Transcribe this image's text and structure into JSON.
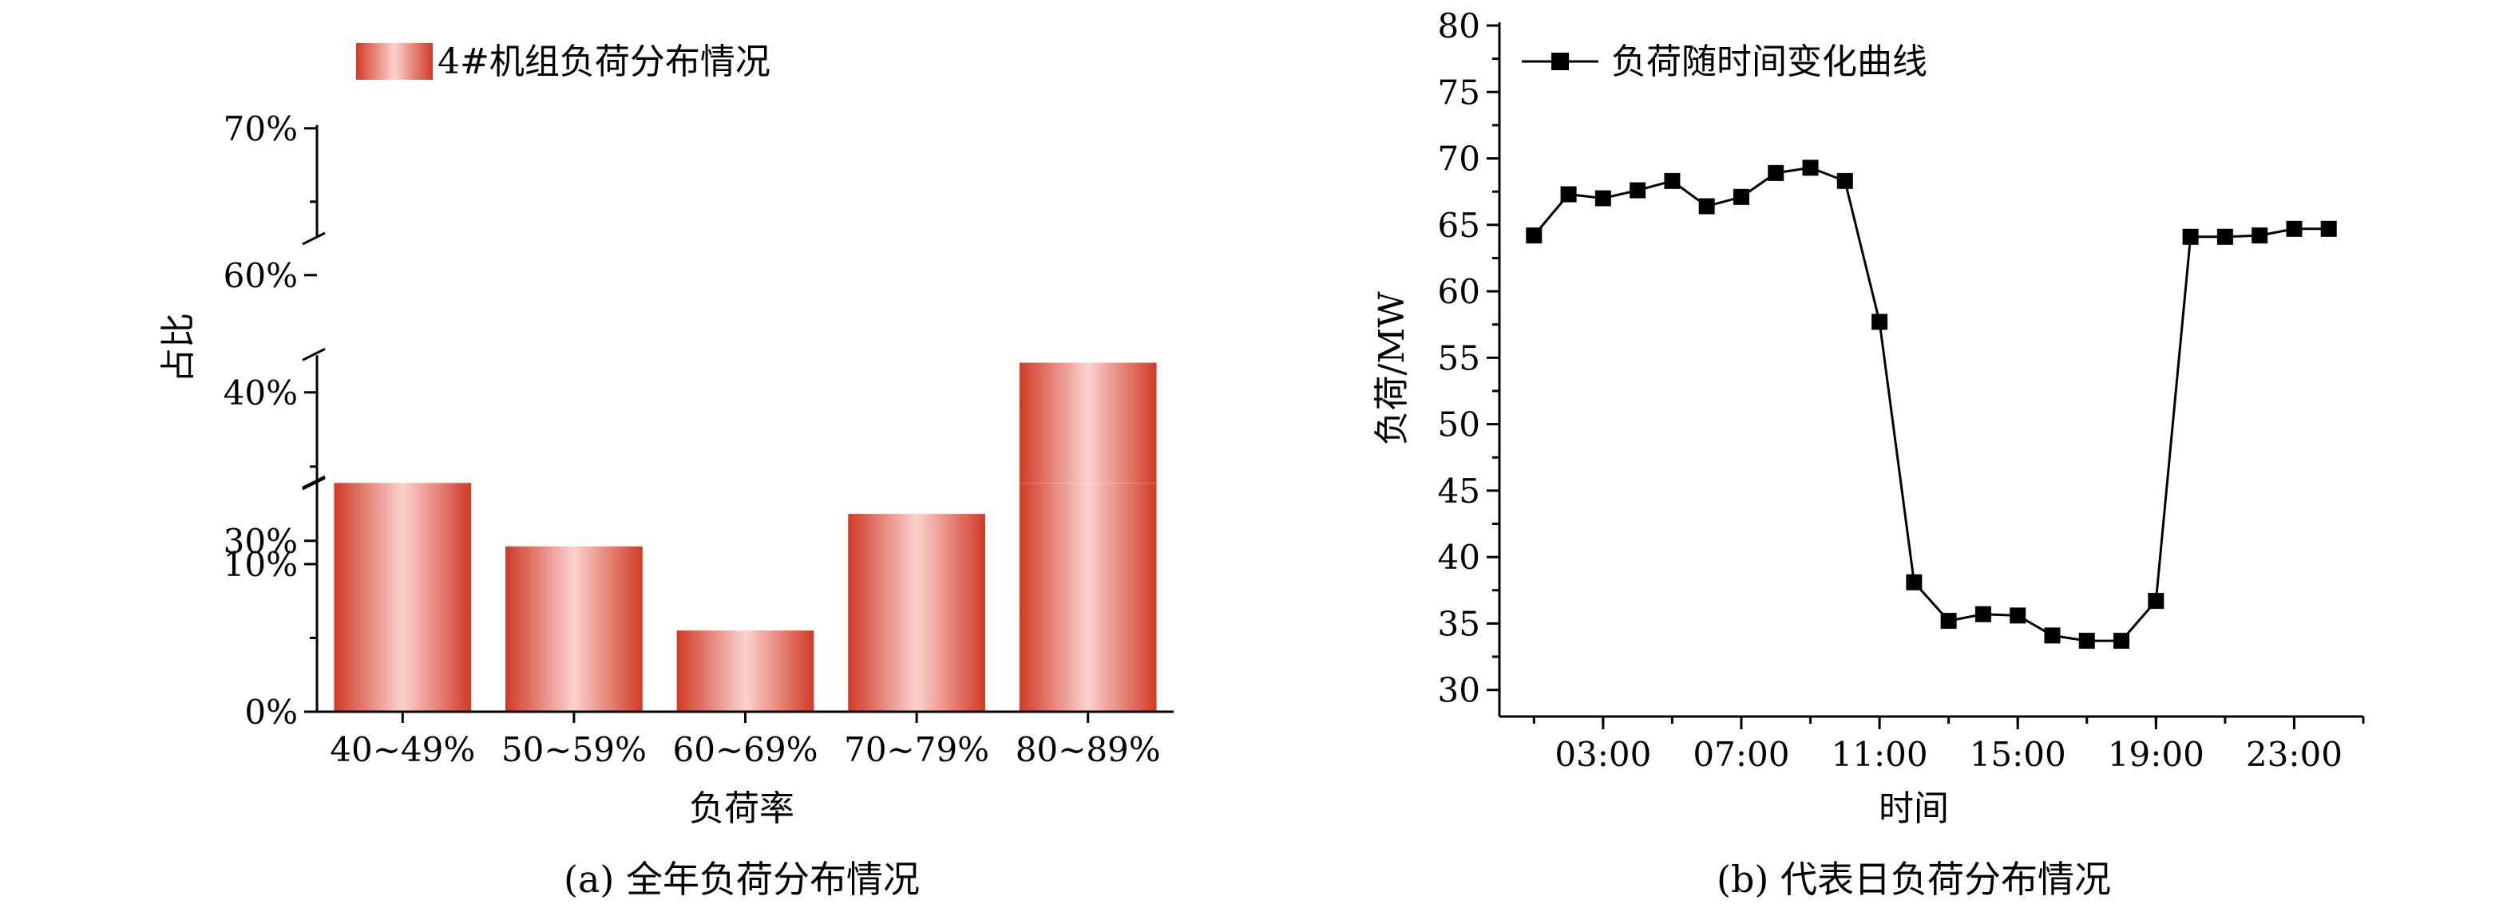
{
  "chart_data": [
    {
      "type": "bar",
      "title": "",
      "caption": "(a) 全年负荷分布情况",
      "xlabel": "负荷率",
      "ylabel": "占比",
      "categories": [
        "40~49%",
        "50~59%",
        "60~69%",
        "70~79%",
        "80~89%"
      ],
      "series": [
        {
          "name": "4#机组负荷分布情况",
          "values": [
            28.5,
            11.2,
            5.5,
            13.4,
            42.0
          ]
        }
      ],
      "y_breaks": [
        [
          15.5,
          28
        ],
        [
          42.5,
          57
        ]
      ],
      "yticks": [
        "0%",
        "10%",
        "30%",
        "40%",
        "60%",
        "70%"
      ],
      "ylim": [
        0,
        70
      ],
      "legend": "top-left",
      "grid": false
    },
    {
      "type": "line",
      "title": "",
      "caption": "(b) 代表日负荷分布情况",
      "xlabel": "时间",
      "ylabel": "负荷/MW",
      "x": [
        1,
        2,
        3,
        4,
        5,
        6,
        7,
        8,
        9,
        10,
        11,
        12,
        13,
        14,
        15,
        16,
        17,
        18,
        19,
        20,
        21,
        22,
        23,
        24
      ],
      "xticks": [
        "03:00",
        "07:00",
        "11:00",
        "15:00",
        "19:00",
        "23:00"
      ],
      "xtick_values": [
        3,
        7,
        11,
        15,
        19,
        23
      ],
      "xlim": [
        0,
        25
      ],
      "series": [
        {
          "name": "负荷随时间变化曲线",
          "values": [
            64.2,
            67.3,
            67.0,
            67.6,
            68.3,
            66.4,
            67.1,
            68.9,
            69.3,
            68.3,
            57.7,
            38.1,
            35.2,
            35.7,
            35.6,
            34.1,
            33.7,
            33.7,
            36.7,
            64.1,
            64.1,
            64.2,
            64.7,
            64.7
          ]
        }
      ],
      "ylim": [
        28,
        80
      ],
      "yticks": [
        "30",
        "35",
        "40",
        "45",
        "50",
        "55",
        "60",
        "65",
        "70",
        "75",
        "80"
      ],
      "legend": "top-left",
      "grid": false
    }
  ]
}
